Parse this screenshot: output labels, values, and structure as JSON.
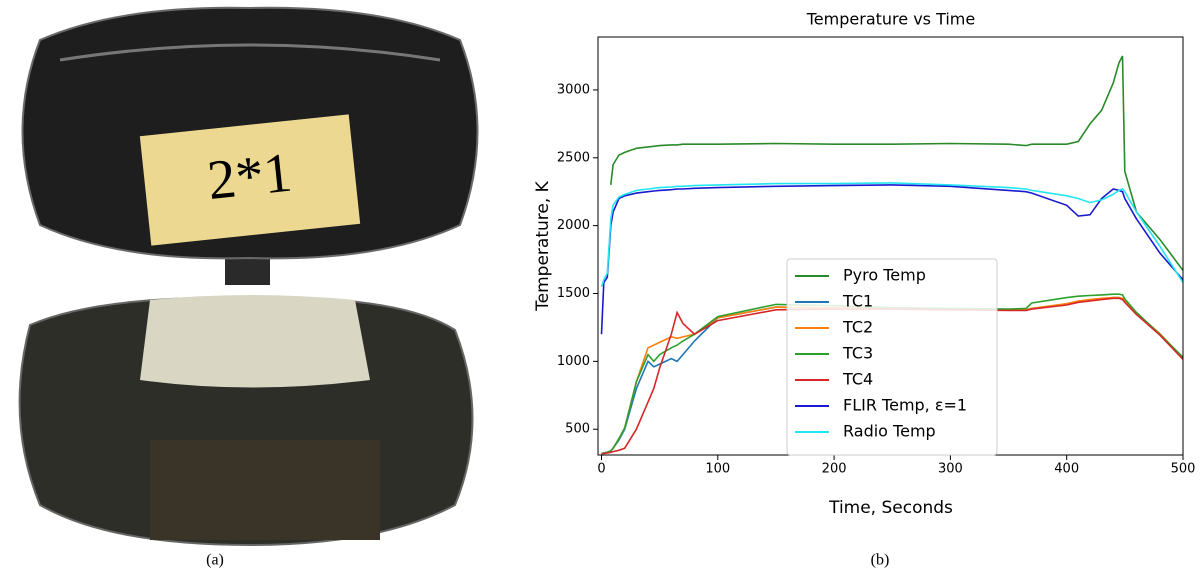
{
  "figure": {
    "panel_a": {
      "caption": "(a)",
      "label": "2*1"
    },
    "panel_b": {
      "caption": "(b)"
    }
  },
  "chart_data": {
    "type": "line",
    "title": "Temperature vs Time",
    "x_label": "Time, Seconds",
    "y_label": "Temperature, K",
    "x": [
      0,
      2,
      5,
      8,
      10,
      15,
      20,
      30,
      40,
      45,
      50,
      60,
      65,
      70,
      80,
      100,
      150,
      200,
      250,
      300,
      350,
      365,
      370,
      400,
      410,
      420,
      430,
      440,
      445,
      448,
      450,
      460,
      480,
      500
    ],
    "series": [
      {
        "name": "Pyro Temp",
        "color": "#2a8a2a",
        "values": [
          null,
          null,
          null,
          2300,
          2450,
          2520,
          2540,
          2570,
          2580,
          2585,
          2590,
          2595,
          2595,
          2600,
          2600,
          2600,
          2605,
          2600,
          2600,
          2605,
          2600,
          2590,
          2600,
          2600,
          2620,
          2750,
          2850,
          3050,
          3200,
          3250,
          2400,
          2100,
          1900,
          1670
        ]
      },
      {
        "name": "TC1",
        "color": "#1f77b4",
        "values": [
          320,
          325,
          330,
          340,
          360,
          420,
          500,
          800,
          1000,
          960,
          980,
          1020,
          1000,
          1050,
          1150,
          1320,
          1400,
          1390,
          1390,
          1385,
          1380,
          1380,
          1390,
          1420,
          1440,
          1450,
          1460,
          1470,
          1470,
          1460,
          1440,
          1350,
          1200,
          1020
        ]
      },
      {
        "name": "TC2",
        "color": "#ff7f0e",
        "values": [
          320,
          325,
          330,
          340,
          360,
          430,
          510,
          850,
          1100,
          1120,
          1140,
          1180,
          1170,
          1180,
          1200,
          1320,
          1400,
          1395,
          1390,
          1385,
          1380,
          1380,
          1390,
          1425,
          1445,
          1455,
          1465,
          1470,
          1470,
          1465,
          1445,
          1355,
          1205,
          1025
        ]
      },
      {
        "name": "TC3",
        "color": "#2ca02c",
        "values": [
          320,
          325,
          330,
          340,
          360,
          430,
          510,
          850,
          1050,
          1000,
          1050,
          1100,
          1120,
          1150,
          1200,
          1330,
          1420,
          1410,
          1395,
          1390,
          1385,
          1390,
          1430,
          1470,
          1480,
          1485,
          1490,
          1495,
          1495,
          1490,
          1460,
          1360,
          1200,
          1030
        ]
      },
      {
        "name": "TC4",
        "color": "#d62728",
        "values": [
          320,
          322,
          325,
          330,
          335,
          345,
          360,
          500,
          700,
          800,
          950,
          1200,
          1360,
          1280,
          1200,
          1300,
          1380,
          1385,
          1385,
          1380,
          1375,
          1375,
          1385,
          1415,
          1435,
          1445,
          1455,
          1465,
          1465,
          1455,
          1435,
          1345,
          1195,
          1015
        ]
      },
      {
        "name": "FLIR Temp, ε=1",
        "color": "#1a1ad0",
        "values": [
          1200,
          1580,
          1620,
          2000,
          2100,
          2200,
          2220,
          2240,
          2250,
          2255,
          2260,
          2265,
          2270,
          2270,
          2275,
          2280,
          2290,
          2295,
          2300,
          2290,
          2260,
          2250,
          2240,
          2150,
          2070,
          2080,
          2200,
          2270,
          2260,
          2250,
          2200,
          2050,
          1800,
          1600
        ]
      },
      {
        "name": "Radio Temp",
        "color": "#22e6f0",
        "values": [
          1550,
          1600,
          1650,
          2050,
          2150,
          2210,
          2230,
          2260,
          2270,
          2275,
          2280,
          2285,
          2290,
          2290,
          2295,
          2300,
          2310,
          2310,
          2315,
          2300,
          2280,
          2270,
          2260,
          2220,
          2200,
          2170,
          2190,
          2230,
          2260,
          2270,
          2250,
          2100,
          1850,
          1580
        ]
      }
    ],
    "xlim": [
      -3,
      500
    ],
    "ylim": [
      310,
      3390
    ],
    "xticks": [
      0,
      100,
      200,
      300,
      400,
      500
    ],
    "yticks": [
      500,
      1000,
      1500,
      2000,
      2500,
      3000
    ],
    "legend": "lower center",
    "grid": false
  }
}
